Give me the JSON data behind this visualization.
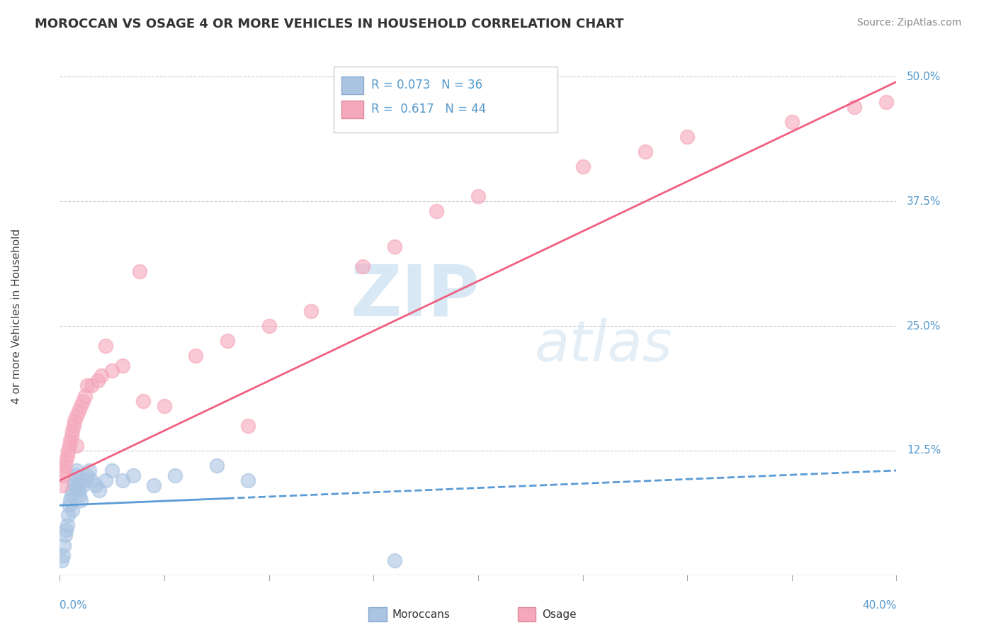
{
  "title": "MOROCCAN VS OSAGE 4 OR MORE VEHICLES IN HOUSEHOLD CORRELATION CHART",
  "source": "Source: ZipAtlas.com",
  "ylabel_label": "4 or more Vehicles in Household",
  "xmin": 0.0,
  "xmax": 40.0,
  "ymin": 0.0,
  "ymax": 52.0,
  "ytick_vals": [
    12.5,
    25.0,
    37.5,
    50.0
  ],
  "legend_entry1": {
    "R": "0.073",
    "N": "36",
    "label": "Moroccans"
  },
  "legend_entry2": {
    "R": "0.617",
    "N": "44",
    "label": "Osage"
  },
  "moroccan_color": "#aac4e2",
  "osage_color": "#f5a8bc",
  "moroccan_line_color": "#5b9bd5",
  "osage_line_color": "#f06080",
  "watermark_zip_color": "#c8dff0",
  "watermark_atlas_color": "#c8dff0",
  "background_color": "#ffffff",
  "grid_color": "#cccccc",
  "title_color": "#333333",
  "source_color": "#888888",
  "tick_label_color": "#5599cc",
  "moroccan_points_x": [
    0.1,
    0.15,
    0.2,
    0.25,
    0.3,
    0.35,
    0.4,
    0.45,
    0.5,
    0.55,
    0.6,
    0.65,
    0.7,
    0.75,
    0.8,
    0.85,
    0.9,
    0.95,
    1.0,
    1.1,
    1.2,
    1.3,
    1.4,
    1.5,
    1.7,
    1.9,
    2.2,
    2.5,
    3.0,
    3.5,
    4.5,
    5.5,
    7.5,
    9.0,
    16.0,
    0.6
  ],
  "moroccan_points_y": [
    1.5,
    2.0,
    3.0,
    4.0,
    4.5,
    5.0,
    6.0,
    7.0,
    7.5,
    8.0,
    8.5,
    9.0,
    9.5,
    10.0,
    10.5,
    9.0,
    8.5,
    8.0,
    7.5,
    9.0,
    9.5,
    10.0,
    10.5,
    9.5,
    9.0,
    8.5,
    9.5,
    10.5,
    9.5,
    10.0,
    9.0,
    10.0,
    11.0,
    9.5,
    1.5,
    6.5
  ],
  "osage_points_x": [
    0.1,
    0.15,
    0.2,
    0.25,
    0.3,
    0.35,
    0.4,
    0.45,
    0.5,
    0.55,
    0.6,
    0.65,
    0.7,
    0.8,
    0.9,
    1.0,
    1.1,
    1.2,
    1.5,
    1.8,
    2.0,
    2.5,
    3.0,
    3.8,
    5.0,
    6.5,
    8.0,
    10.0,
    12.0,
    14.5,
    16.0,
    20.0,
    25.0,
    30.0,
    35.0,
    38.0,
    1.3,
    2.2,
    4.0,
    0.8,
    9.0,
    18.0,
    28.0,
    39.5
  ],
  "osage_points_y": [
    9.0,
    10.0,
    10.5,
    11.0,
    11.5,
    12.0,
    12.5,
    13.0,
    13.5,
    14.0,
    14.5,
    15.0,
    15.5,
    16.0,
    16.5,
    17.0,
    17.5,
    18.0,
    19.0,
    19.5,
    20.0,
    20.5,
    21.0,
    30.5,
    17.0,
    22.0,
    23.5,
    25.0,
    26.5,
    31.0,
    33.0,
    38.0,
    41.0,
    44.0,
    45.5,
    47.0,
    19.0,
    23.0,
    17.5,
    13.0,
    15.0,
    36.5,
    42.5,
    47.5
  ],
  "moroccan_trendline_y0": 7.0,
  "moroccan_trendline_y1": 10.5,
  "osage_trendline_y0": 9.5,
  "osage_trendline_y1": 49.5
}
